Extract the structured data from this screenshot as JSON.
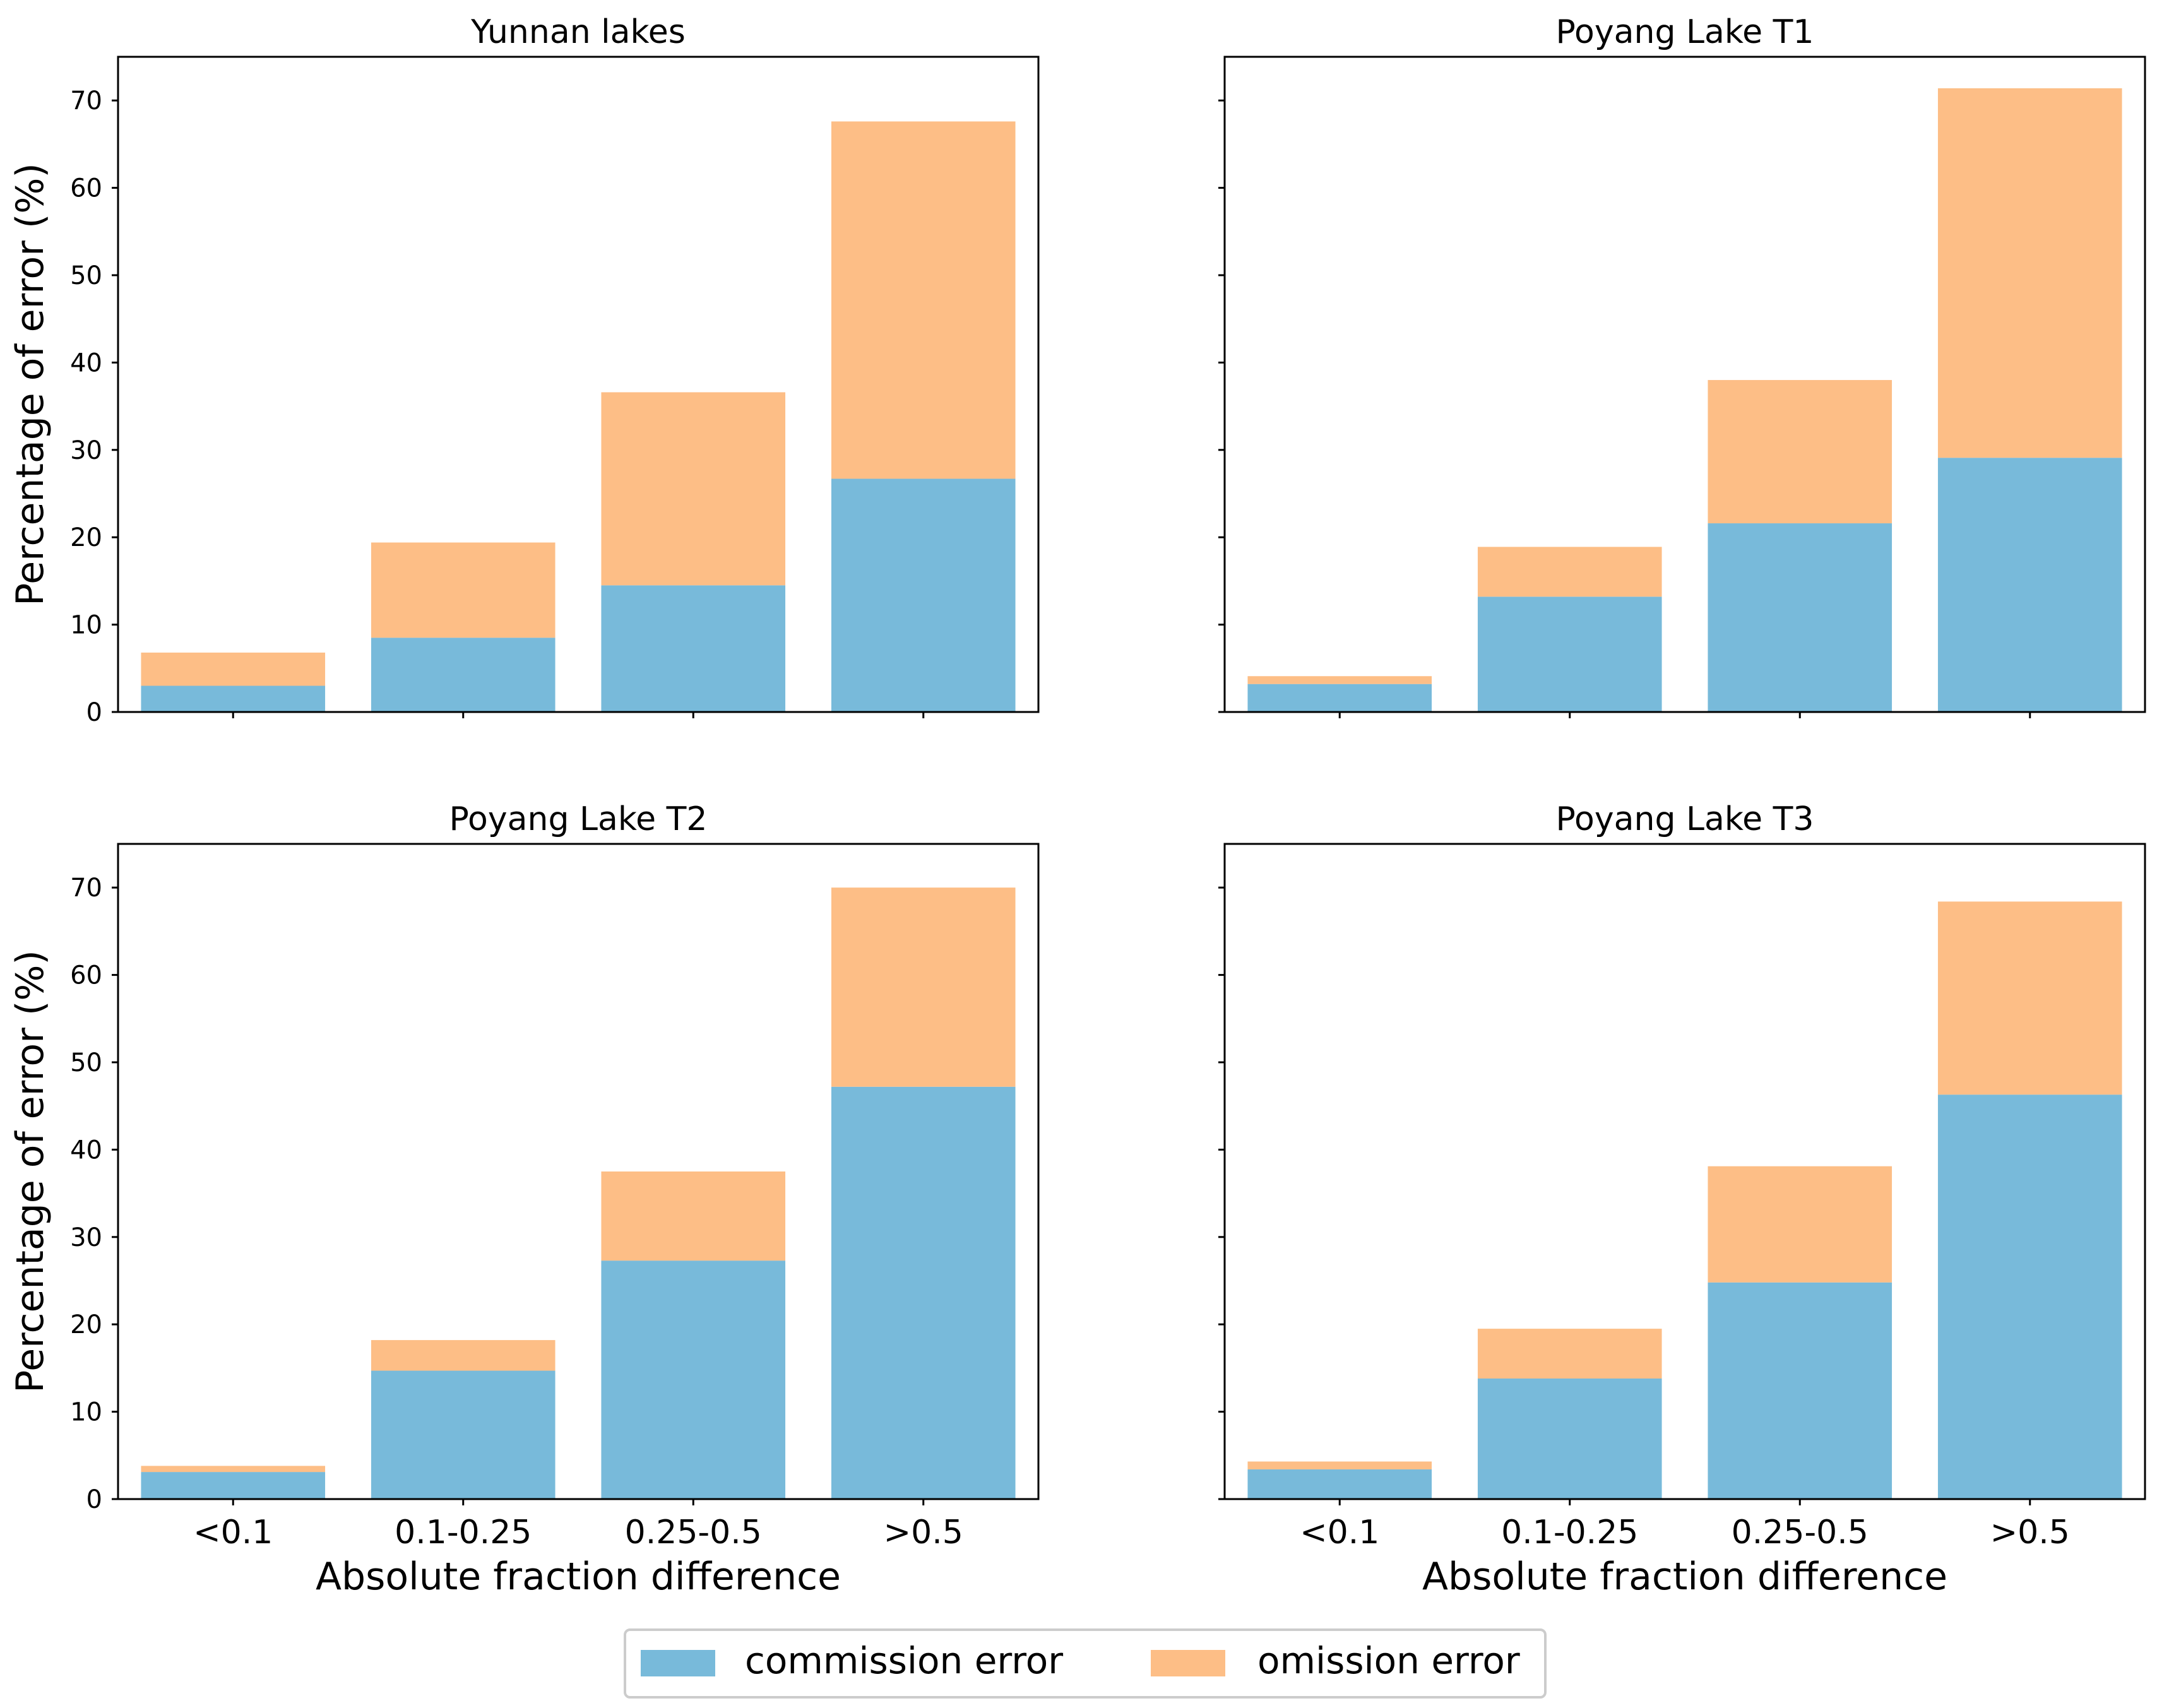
{
  "chart_data": [
    {
      "type": "bar",
      "stacked": true,
      "title": "Yunnan lakes",
      "categories": [
        "<0.1",
        "0.1-0.25",
        "0.25-0.5",
        ">0.5"
      ],
      "series": [
        {
          "name": "commission error",
          "values": [
            3.0,
            8.5,
            14.5,
            26.7
          ]
        },
        {
          "name": "omission error",
          "values": [
            3.8,
            10.9,
            22.1,
            40.9
          ]
        }
      ],
      "xlabel": "",
      "ylabel": "Percentage of error (%)",
      "ylim": [
        0,
        75
      ],
      "yticks": [
        "0",
        "10",
        "20",
        "30",
        "40",
        "50",
        "60",
        "70"
      ]
    },
    {
      "type": "bar",
      "stacked": true,
      "title": "Poyang Lake T1",
      "categories": [
        "<0.1",
        "0.1-0.25",
        "0.25-0.5",
        ">0.5"
      ],
      "series": [
        {
          "name": "commission error",
          "values": [
            3.2,
            13.2,
            21.6,
            29.1
          ]
        },
        {
          "name": "omission error",
          "values": [
            0.9,
            5.7,
            16.4,
            42.3
          ]
        }
      ],
      "xlabel": "",
      "ylabel": "",
      "ylim": [
        0,
        75
      ],
      "yticks": []
    },
    {
      "type": "bar",
      "stacked": true,
      "title": "Poyang Lake T2",
      "categories": [
        "<0.1",
        "0.1-0.25",
        "0.25-0.5",
        ">0.5"
      ],
      "series": [
        {
          "name": "commission error",
          "values": [
            3.1,
            14.7,
            27.3,
            47.2
          ]
        },
        {
          "name": "omission error",
          "values": [
            0.7,
            3.5,
            10.2,
            22.8
          ]
        }
      ],
      "xlabel": "Absolute fraction difference",
      "ylabel": "Percentage of error (%)",
      "ylim": [
        0,
        75
      ],
      "yticks": [
        "0",
        "10",
        "20",
        "30",
        "40",
        "50",
        "60",
        "70"
      ]
    },
    {
      "type": "bar",
      "stacked": true,
      "title": "Poyang Lake T3",
      "categories": [
        "<0.1",
        "0.1-0.25",
        "0.25-0.5",
        ">0.5"
      ],
      "series": [
        {
          "name": "commission error",
          "values": [
            3.4,
            13.8,
            24.8,
            46.3
          ]
        },
        {
          "name": "omission error",
          "values": [
            0.9,
            5.7,
            13.3,
            22.1
          ]
        }
      ],
      "xlabel": "Absolute fraction difference",
      "ylabel": "",
      "ylim": [
        0,
        75
      ],
      "yticks": []
    }
  ],
  "legend": {
    "position": "bottom-center",
    "items": [
      {
        "label": "commission error",
        "color": "#78bada"
      },
      {
        "label": "omission error",
        "color": "#fdbe86"
      }
    ]
  },
  "colors": {
    "commission": "#78bada",
    "omission": "#fdbe86",
    "axis": "#000000",
    "legend_border": "#cccccc"
  }
}
